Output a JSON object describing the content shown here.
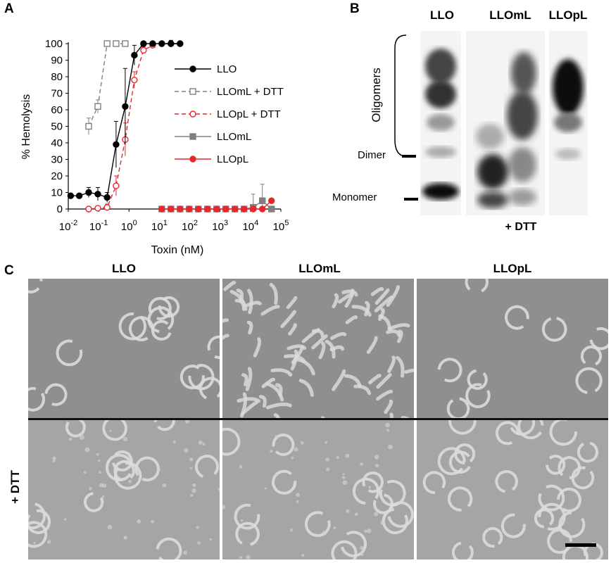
{
  "panels": {
    "a": "A",
    "b": "B",
    "c": "C"
  },
  "chart_data": {
    "type": "line",
    "xlabel": "Toxin (nM)",
    "ylabel": "% Hemolysis",
    "x_scale": "log",
    "xlim": [
      0.01,
      100000
    ],
    "ylim": [
      0,
      100
    ],
    "x_tick_labels": [
      "10-2",
      "10-1",
      "100",
      "101",
      "102",
      "103",
      "104",
      "105"
    ],
    "y_ticks": [
      0,
      10,
      20,
      30,
      40,
      50,
      60,
      70,
      80,
      90,
      100
    ],
    "legend_position": "right",
    "series": [
      {
        "name": "LLO",
        "color": "#000000",
        "marker": "circle-filled",
        "dash": "solid",
        "points": [
          [
            0.012,
            8
          ],
          [
            0.023,
            8
          ],
          [
            0.047,
            10
          ],
          [
            0.094,
            9
          ],
          [
            0.19,
            7
          ],
          [
            0.375,
            39
          ],
          [
            0.75,
            62
          ],
          [
            1.5,
            93
          ],
          [
            3,
            100
          ],
          [
            6,
            100
          ],
          [
            12,
            100
          ],
          [
            24,
            100
          ],
          [
            48,
            100
          ]
        ],
        "errors": [
          1,
          1,
          3,
          4,
          3,
          14,
          23,
          6,
          1,
          1,
          1,
          2,
          1
        ]
      },
      {
        "name": "LLOmL + DTT",
        "color": "#808080",
        "marker": "square-open",
        "dash": "dashed",
        "points": [
          [
            0.047,
            50
          ],
          [
            0.094,
            62
          ],
          [
            0.19,
            100
          ],
          [
            0.375,
            100
          ],
          [
            0.75,
            100
          ]
        ],
        "errors": [
          5,
          4,
          1,
          1,
          1
        ]
      },
      {
        "name": "LLOpL + DTT",
        "color": "#e8262d",
        "marker": "circle-open",
        "dash": "dashed",
        "points": [
          [
            0.047,
            0
          ],
          [
            0.094,
            0.5
          ],
          [
            0.19,
            1
          ],
          [
            0.375,
            14
          ],
          [
            0.75,
            42
          ],
          [
            1.5,
            78
          ],
          [
            3,
            96
          ],
          [
            6,
            99
          ],
          [
            12,
            100
          ],
          [
            24,
            100
          ],
          [
            48,
            100
          ]
        ],
        "errors": [
          0.5,
          1,
          2,
          6,
          10,
          5,
          2,
          1,
          1,
          1,
          1
        ]
      },
      {
        "name": "LLOmL",
        "color": "#808080",
        "marker": "square-filled",
        "dash": "solid",
        "points": [
          [
            12,
            0
          ],
          [
            24,
            0
          ],
          [
            48,
            0
          ],
          [
            96,
            0
          ],
          [
            192,
            0
          ],
          [
            384,
            0
          ],
          [
            768,
            0
          ],
          [
            1536,
            0
          ],
          [
            3072,
            0
          ],
          [
            6144,
            0
          ],
          [
            12288,
            1
          ],
          [
            24576,
            5
          ],
          [
            49152,
            0
          ]
        ],
        "errors": [
          0,
          0,
          0,
          0,
          0,
          0,
          0,
          0,
          0,
          0,
          8,
          10,
          0
        ]
      },
      {
        "name": "LLOpL",
        "color": "#e8262d",
        "marker": "circle-filled",
        "dash": "solid",
        "points": [
          [
            12,
            0
          ],
          [
            24,
            0
          ],
          [
            48,
            0
          ],
          [
            96,
            0
          ],
          [
            192,
            0
          ],
          [
            384,
            0
          ],
          [
            768,
            0
          ],
          [
            1536,
            0
          ],
          [
            3072,
            0
          ],
          [
            6144,
            0
          ],
          [
            12288,
            0
          ],
          [
            24576,
            0
          ],
          [
            49152,
            5
          ]
        ],
        "errors": [
          0,
          0,
          0,
          0,
          0,
          0,
          0,
          0,
          0,
          0,
          0,
          0,
          0
        ]
      }
    ]
  },
  "blot": {
    "lanes": [
      "LLO",
      "LLOmL",
      "LLOpL"
    ],
    "side_labels": {
      "oligomers": "Oligomers",
      "dimer": "Dimer",
      "monomer": "Monomer"
    },
    "dtt_label": "+ DTT"
  },
  "em": {
    "columns": [
      "LLO",
      "LLOmL",
      "LLOpL"
    ],
    "row_label": "+ DTT"
  }
}
